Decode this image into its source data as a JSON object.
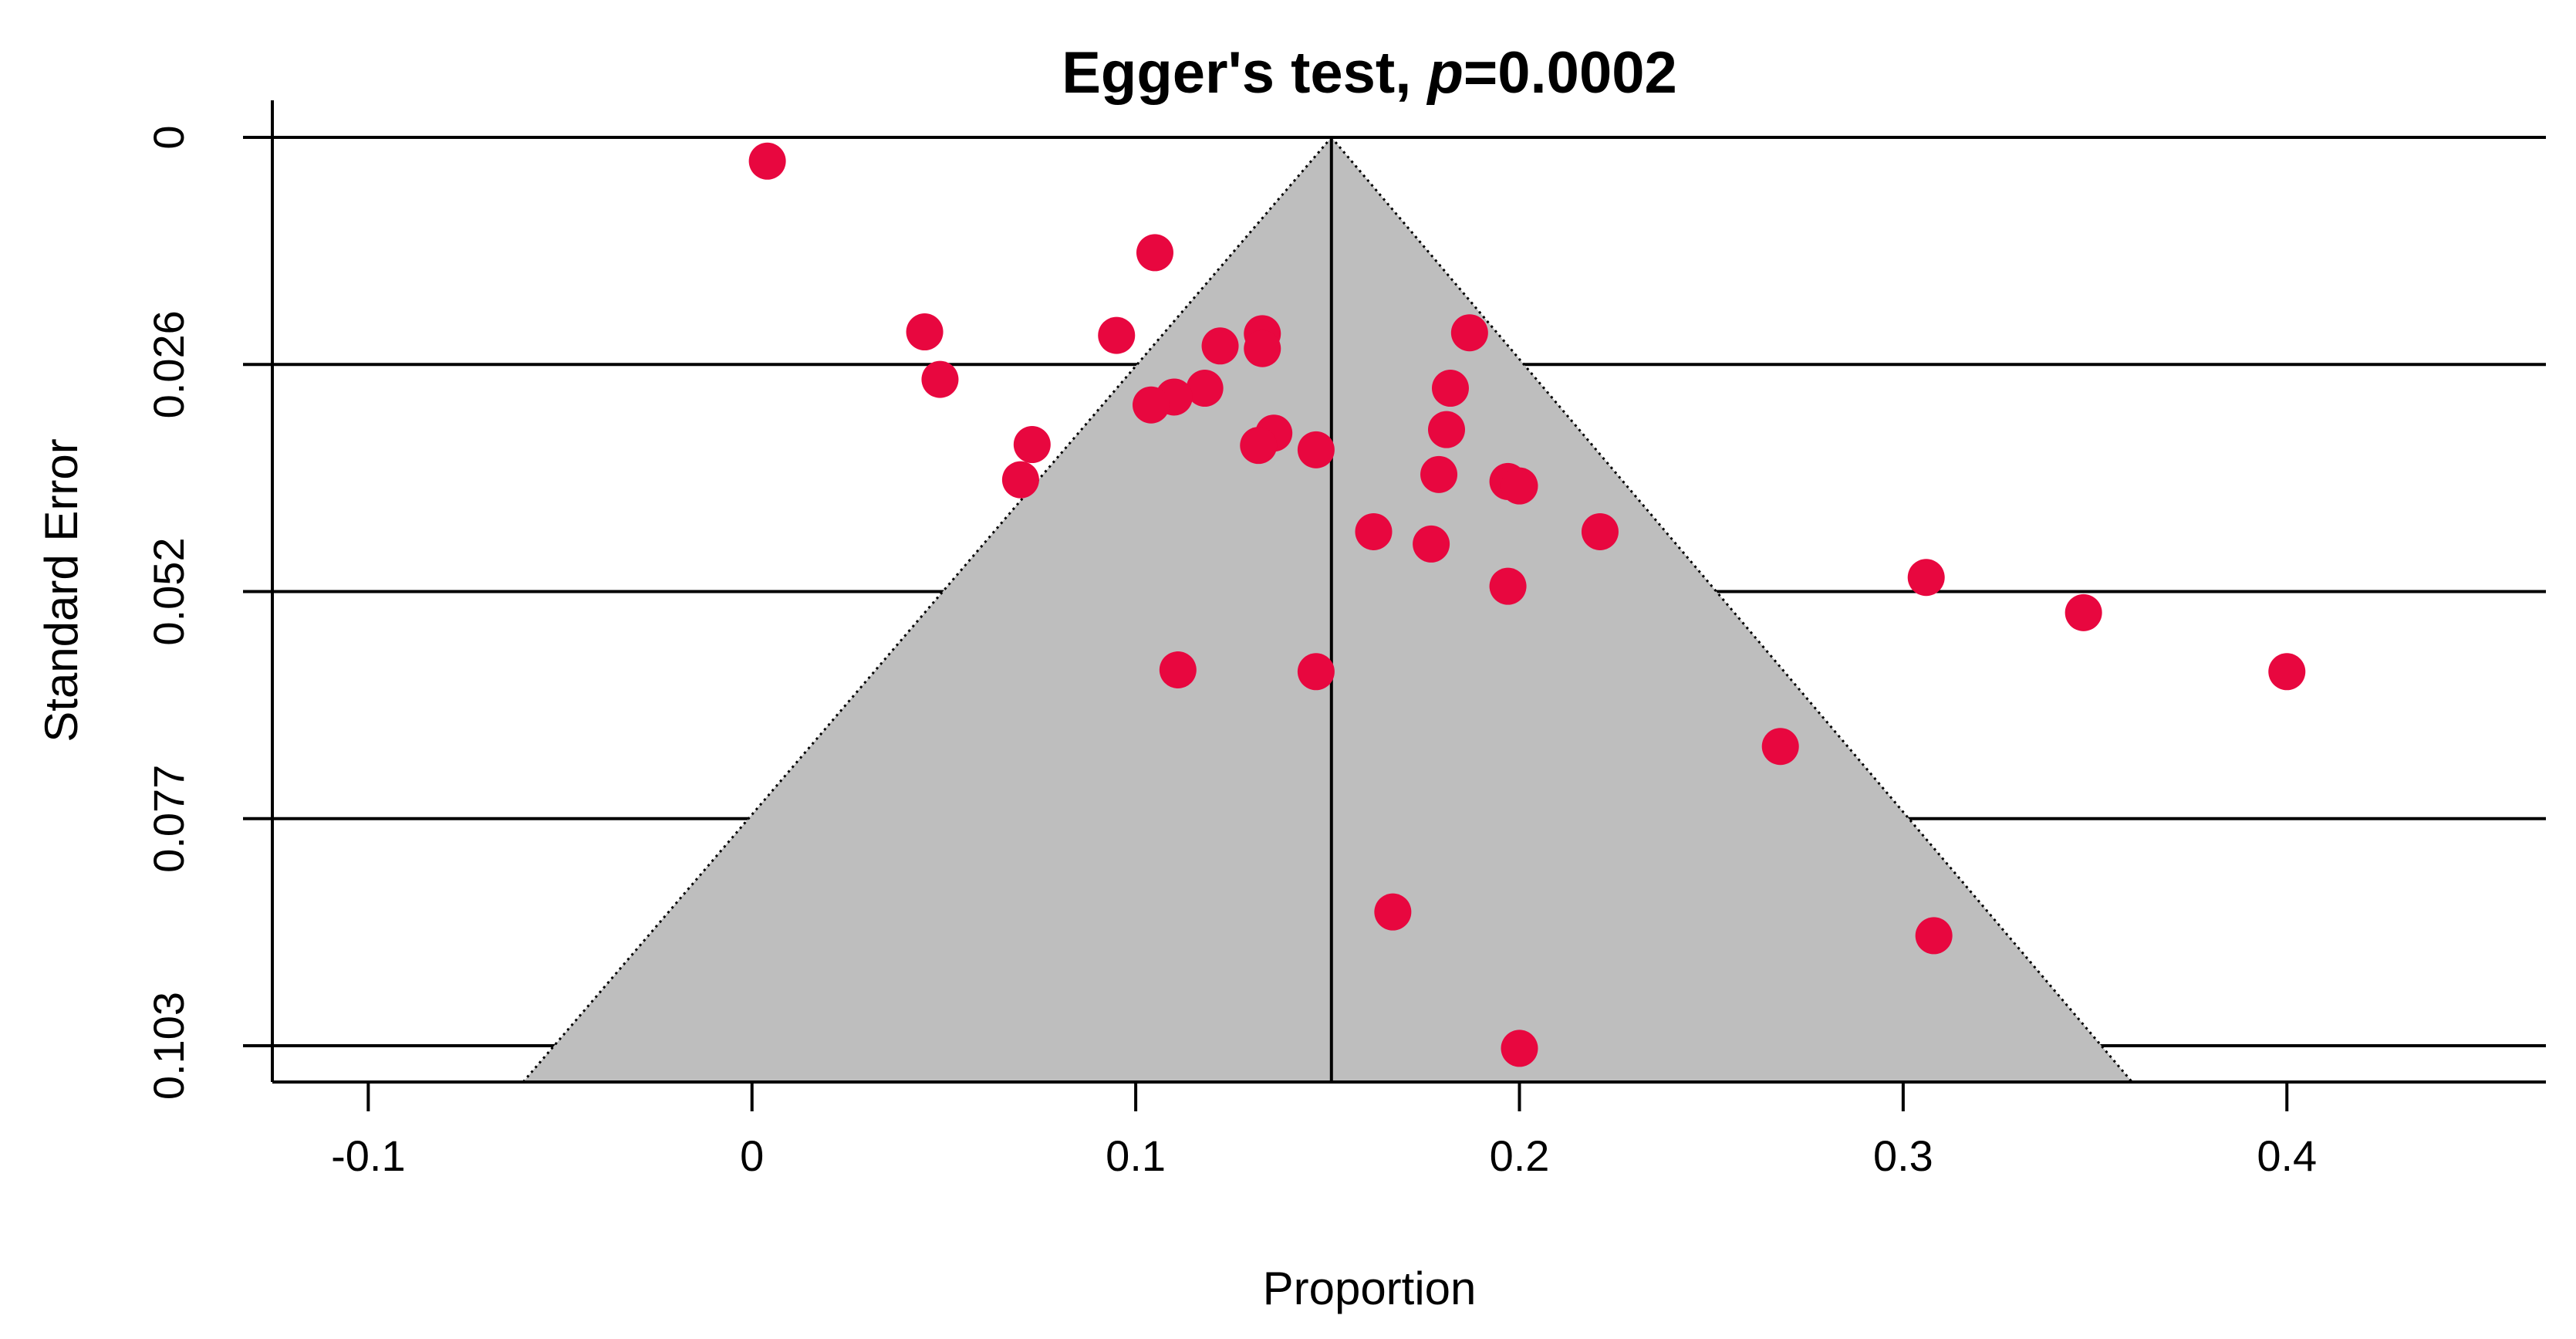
{
  "chart_data": {
    "type": "scatter",
    "subtype": "funnel plot",
    "title_prefix": "Egger's test, ",
    "title_p": "p",
    "title_suffix": "=0.0002",
    "xlabel": "Proportion",
    "ylabel": "Standard Error",
    "xlim": [
      -0.125,
      0.4675
    ],
    "ylim_reversed": [
      0,
      0.1075
    ],
    "x_ticks": [
      {
        "value": -0.1,
        "label": "-0.1"
      },
      {
        "value": 0,
        "label": "0"
      },
      {
        "value": 0.1,
        "label": "0.1"
      },
      {
        "value": 0.2,
        "label": "0.2"
      },
      {
        "value": 0.3,
        "label": "0.3"
      },
      {
        "value": 0.4,
        "label": "0.4"
      }
    ],
    "y_ticks": [
      {
        "value": 0,
        "label": "0"
      },
      {
        "value": 0.0258,
        "label": "0.026"
      },
      {
        "value": 0.0516,
        "label": "0.052"
      },
      {
        "value": 0.0774,
        "label": "0.077"
      },
      {
        "value": 0.1032,
        "label": "0.103"
      }
    ],
    "pooled_estimate": 0.151,
    "funnel_se_max": 0.1075,
    "funnel_x_at_max": [
      -0.06,
      0.36
    ],
    "point_color": "#E8073F",
    "funnel_fill": "#BEBEBE",
    "points": [
      {
        "x": 0.004,
        "y": 0.0027
      },
      {
        "x": 0.105,
        "y": 0.0131
      },
      {
        "x": 0.045,
        "y": 0.0221
      },
      {
        "x": 0.095,
        "y": 0.0225
      },
      {
        "x": 0.187,
        "y": 0.0222
      },
      {
        "x": 0.133,
        "y": 0.0223
      },
      {
        "x": 0.133,
        "y": 0.024
      },
      {
        "x": 0.122,
        "y": 0.0237
      },
      {
        "x": 0.049,
        "y": 0.0275
      },
      {
        "x": 0.118,
        "y": 0.0285
      },
      {
        "x": 0.11,
        "y": 0.0295
      },
      {
        "x": 0.104,
        "y": 0.0304
      },
      {
        "x": 0.182,
        "y": 0.0285
      },
      {
        "x": 0.136,
        "y": 0.0336
      },
      {
        "x": 0.181,
        "y": 0.0332
      },
      {
        "x": 0.073,
        "y": 0.0349
      },
      {
        "x": 0.132,
        "y": 0.035
      },
      {
        "x": 0.147,
        "y": 0.0355
      },
      {
        "x": 0.07,
        "y": 0.0389
      },
      {
        "x": 0.179,
        "y": 0.0383
      },
      {
        "x": 0.197,
        "y": 0.0391
      },
      {
        "x": 0.2,
        "y": 0.0396
      },
      {
        "x": 0.162,
        "y": 0.0448
      },
      {
        "x": 0.221,
        "y": 0.0448
      },
      {
        "x": 0.177,
        "y": 0.0462
      },
      {
        "x": 0.306,
        "y": 0.05
      },
      {
        "x": 0.197,
        "y": 0.051
      },
      {
        "x": 0.347,
        "y": 0.054
      },
      {
        "x": 0.111,
        "y": 0.0605
      },
      {
        "x": 0.147,
        "y": 0.0607
      },
      {
        "x": 0.4,
        "y": 0.0607
      },
      {
        "x": 0.268,
        "y": 0.0692
      },
      {
        "x": 0.167,
        "y": 0.088
      },
      {
        "x": 0.308,
        "y": 0.0907
      },
      {
        "x": 0.2,
        "y": 0.1035
      }
    ]
  }
}
